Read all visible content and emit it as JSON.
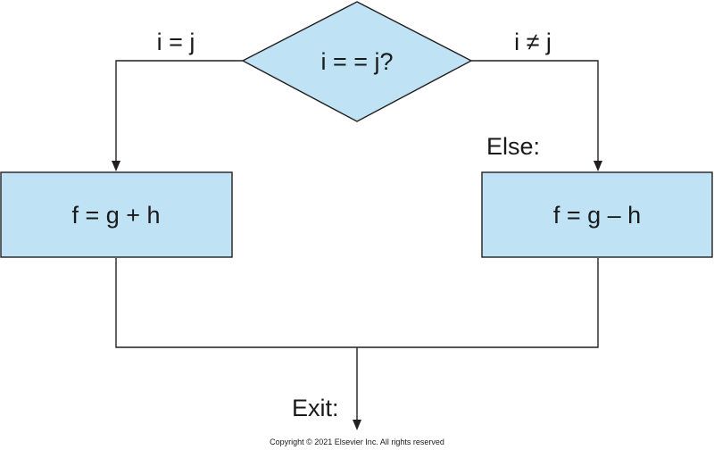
{
  "diagram": {
    "decision": {
      "label": "i = = j?"
    },
    "branch_true": {
      "label": "i = j"
    },
    "branch_false": {
      "label": "i ≠ j"
    },
    "left_box": {
      "label": "f = g + h"
    },
    "right_box": {
      "label": "f = g – h"
    },
    "else_label": "Else:",
    "exit_label": "Exit:",
    "fill_color": "#bfe3f5",
    "stroke_color": "#231f20"
  },
  "copyright": "Copyright © 2021 Elsevier Inc. All rights reserved"
}
